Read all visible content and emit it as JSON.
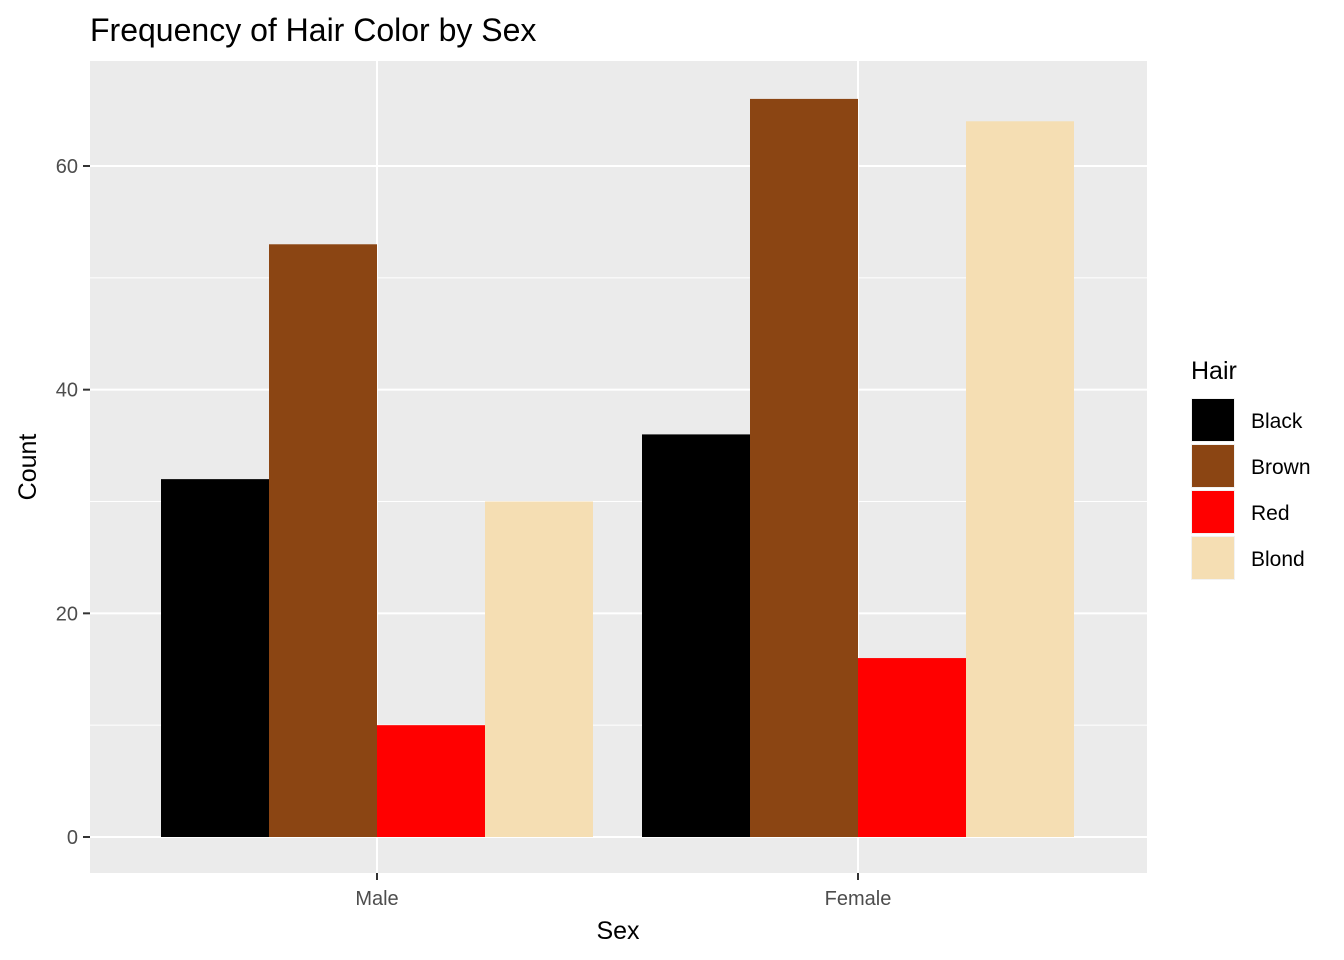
{
  "chart_data": {
    "type": "bar",
    "title": "Frequency of Hair Color by Sex",
    "xlabel": "Sex",
    "ylabel": "Count",
    "categories": [
      "Male",
      "Female"
    ],
    "ylim": [
      0,
      69
    ],
    "yticks": [
      0,
      20,
      40,
      60
    ],
    "yticks_labels": [
      "0",
      "20",
      "40",
      "60"
    ],
    "grid": true,
    "legend": {
      "title": "Hair",
      "placement": "right"
    },
    "series": [
      {
        "name": "Black",
        "color": "#000000",
        "values": [
          32,
          36
        ]
      },
      {
        "name": "Brown",
        "color": "#8B4513",
        "values": [
          53,
          66
        ]
      },
      {
        "name": "Red",
        "color": "#FF0000",
        "values": [
          10,
          16
        ]
      },
      {
        "name": "Blond",
        "color": "#F5DEB3",
        "values": [
          30,
          64
        ]
      }
    ]
  }
}
